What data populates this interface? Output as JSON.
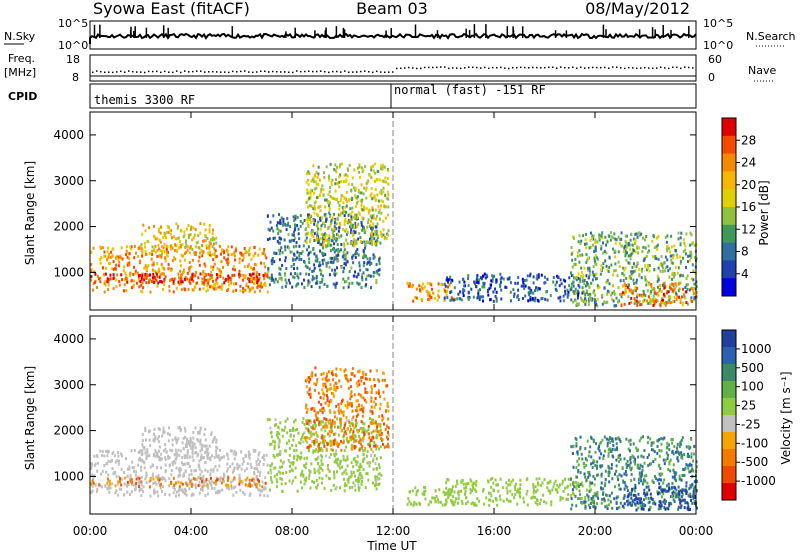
{
  "header": {
    "station": "Syowa East (fitACF)",
    "beam": "Beam 03",
    "date": "08/May/2012"
  },
  "top_panels": {
    "nsky_label": "N.Sky",
    "nsearch_label": "N.Search",
    "nsky_ticks": [
      "10^5",
      "10^0"
    ],
    "nsearch_ticks": [
      "10^5",
      "10^0"
    ],
    "freq_label_1": "Freq.",
    "freq_label_2": "[MHz]",
    "freq_ticks": [
      "18",
      "8"
    ],
    "nave_label": "Nave",
    "nave_ticks": [
      "60",
      "0"
    ],
    "cpid_label": "CPID",
    "cpid_1": "themis 3300 RF",
    "cpid_2": "normal (fast) -151 RF"
  },
  "axes": {
    "ylabel": "Slant Range [km]",
    "xlabel": "Time UT",
    "yticks": [
      "4000",
      "3000",
      "2000",
      "1000"
    ],
    "xticks": [
      "00:00",
      "04:00",
      "08:00",
      "12:00",
      "16:00",
      "20:00",
      "00:00"
    ]
  },
  "colorbars": {
    "power_label": "Power [dB]",
    "power_ticks": [
      "28",
      "24",
      "20",
      "16",
      "12",
      "8",
      "4"
    ],
    "power_colors": [
      "#e00000",
      "#f54a00",
      "#f58a00",
      "#f5b700",
      "#e0d000",
      "#90c040",
      "#3f9a5a",
      "#3070a0",
      "#2040b0",
      "#0000e0"
    ],
    "velocity_label": "Velocity [m s⁻¹]",
    "velocity_ticks": [
      "1000",
      "500",
      "100",
      "25",
      "-25",
      "-100",
      "-500",
      "-1000"
    ],
    "velocity_colors": [
      "#2040a0",
      "#2a62b0",
      "#3a8a6a",
      "#60b048",
      "#90cc40",
      "#c0c0c0",
      "#f5a400",
      "#f57a00",
      "#f04a00",
      "#e00000"
    ]
  },
  "chart_data": {
    "type": "heatmap",
    "panels": [
      "Power [dB]",
      "Velocity [m s⁻¹]"
    ],
    "x_range_hours": [
      0,
      24
    ],
    "y_range_km": [
      180,
      4500
    ],
    "power_range_db": [
      0,
      30
    ],
    "velocity_range": [
      -1000,
      1000
    ],
    "mode_change_hour": 12.0,
    "scatter_regions": [
      {
        "t0": 0.0,
        "t1": 7.0,
        "r0": 600,
        "r1": 1600,
        "power": 22,
        "velocity": -100
      },
      {
        "t0": 0.0,
        "t1": 7.0,
        "r0": 800,
        "r1": 1000,
        "power": 28,
        "velocity": -500
      },
      {
        "t0": 2.0,
        "t1": 5.0,
        "r0": 1400,
        "r1": 2100,
        "power": 18,
        "velocity": -100
      },
      {
        "t0": 7.0,
        "t1": 11.5,
        "r0": 700,
        "r1": 2300,
        "power": 8,
        "velocity": 25
      },
      {
        "t0": 8.5,
        "t1": 11.8,
        "r0": 1600,
        "r1": 3400,
        "power": 16,
        "velocity": -500
      },
      {
        "t0": 12.5,
        "t1": 14.5,
        "r0": 400,
        "r1": 800,
        "power": 22,
        "velocity": 100
      },
      {
        "t0": 14.0,
        "t1": 20.0,
        "r0": 400,
        "r1": 1000,
        "power": 6,
        "velocity": 100
      },
      {
        "t0": 19.0,
        "t1": 24.0,
        "r0": 300,
        "r1": 1900,
        "power": 12,
        "velocity": 500
      },
      {
        "t0": 21.0,
        "t1": 24.0,
        "r0": 300,
        "r1": 800,
        "power": 24,
        "velocity": 1000
      }
    ]
  }
}
